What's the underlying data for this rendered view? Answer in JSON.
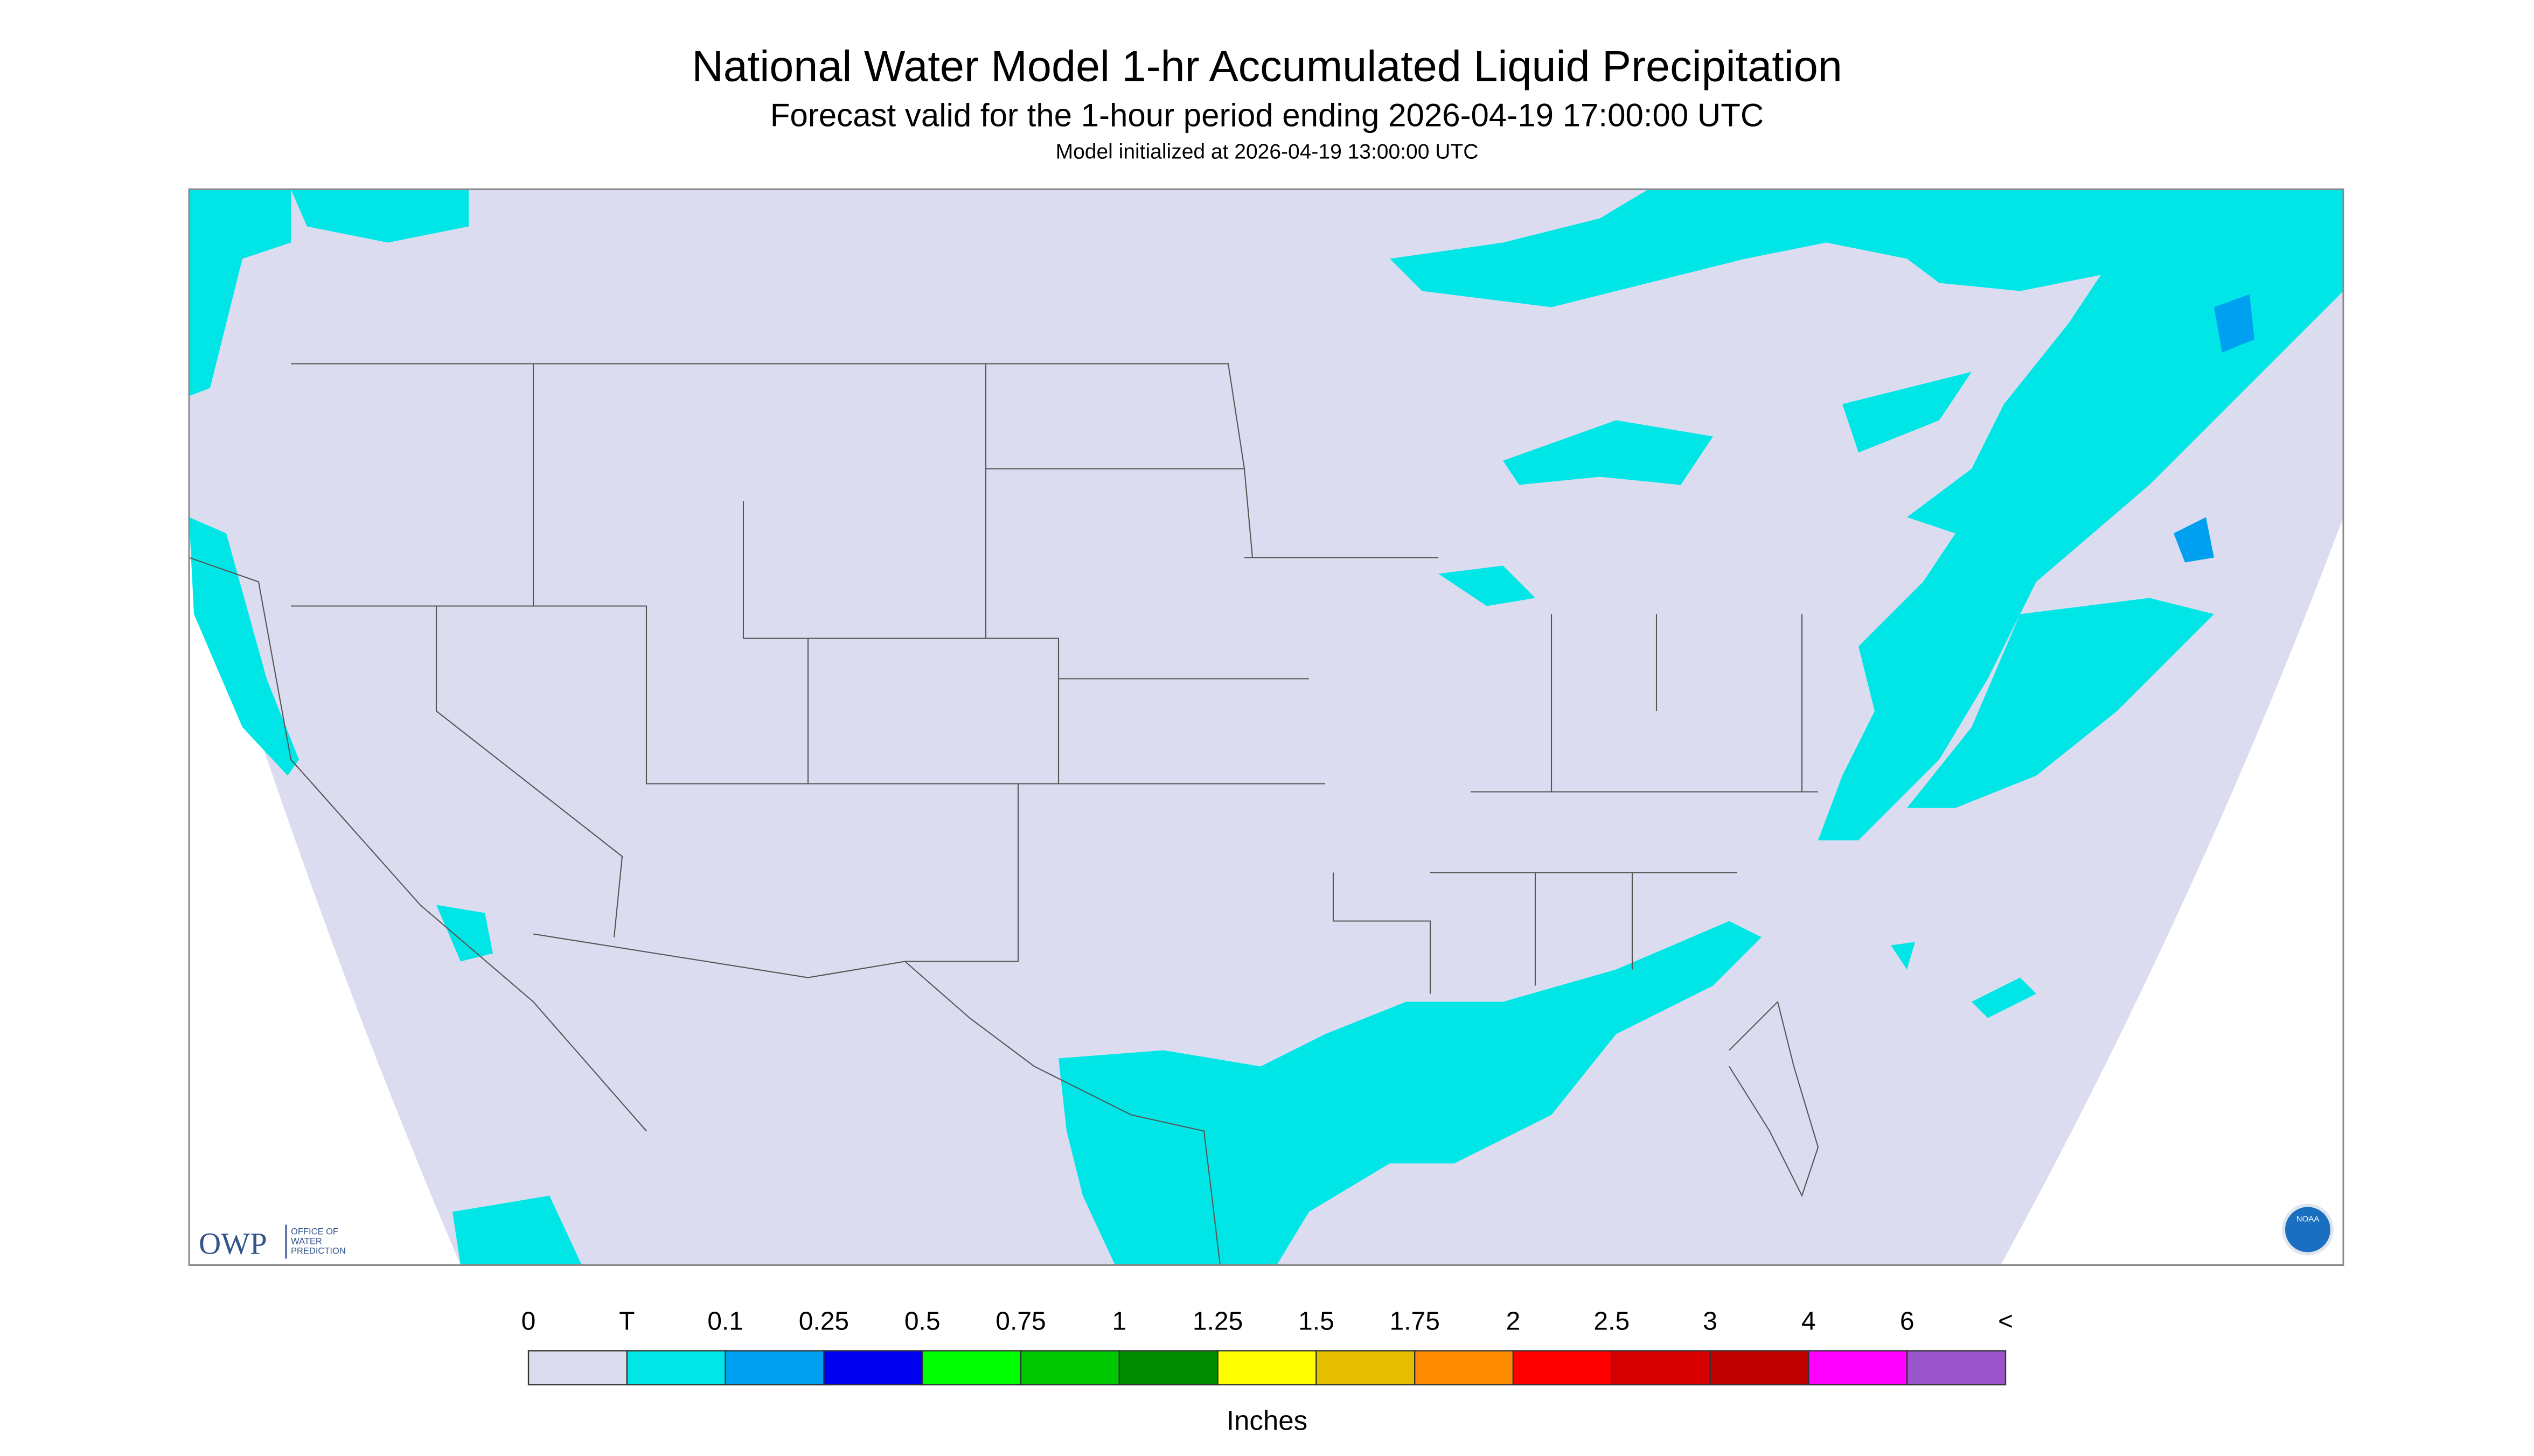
{
  "header": {
    "title": "National Water Model 1-hr Accumulated Liquid Precipitation",
    "subtitle": "Forecast valid for the 1-hour period ending 2026-04-19 17:00:00 UTC",
    "note": "Model initialized at 2026-04-19 13:00:00 UTC"
  },
  "logos": {
    "owp": "OWP",
    "owp_name": [
      "OFFICE OF",
      "WATER",
      "PREDICTION"
    ],
    "noaa": "NOAA"
  },
  "legend": {
    "labels": [
      "0",
      "T",
      "0.1",
      "0.25",
      "0.5",
      "0.75",
      "1",
      "1.25",
      "1.5",
      "1.75",
      "2",
      "2.5",
      "3",
      "4",
      "6",
      "<"
    ],
    "colors": [
      "#dcdcf0",
      "#00e6e6",
      "#00a0f0",
      "#0000f0",
      "#00ff00",
      "#00c800",
      "#008c00",
      "#ffff00",
      "#e6be00",
      "#ff8c00",
      "#ff0000",
      "#d60000",
      "#c00000",
      "#ff00ff",
      "#9955c9"
    ],
    "unit": "Inches"
  }
}
